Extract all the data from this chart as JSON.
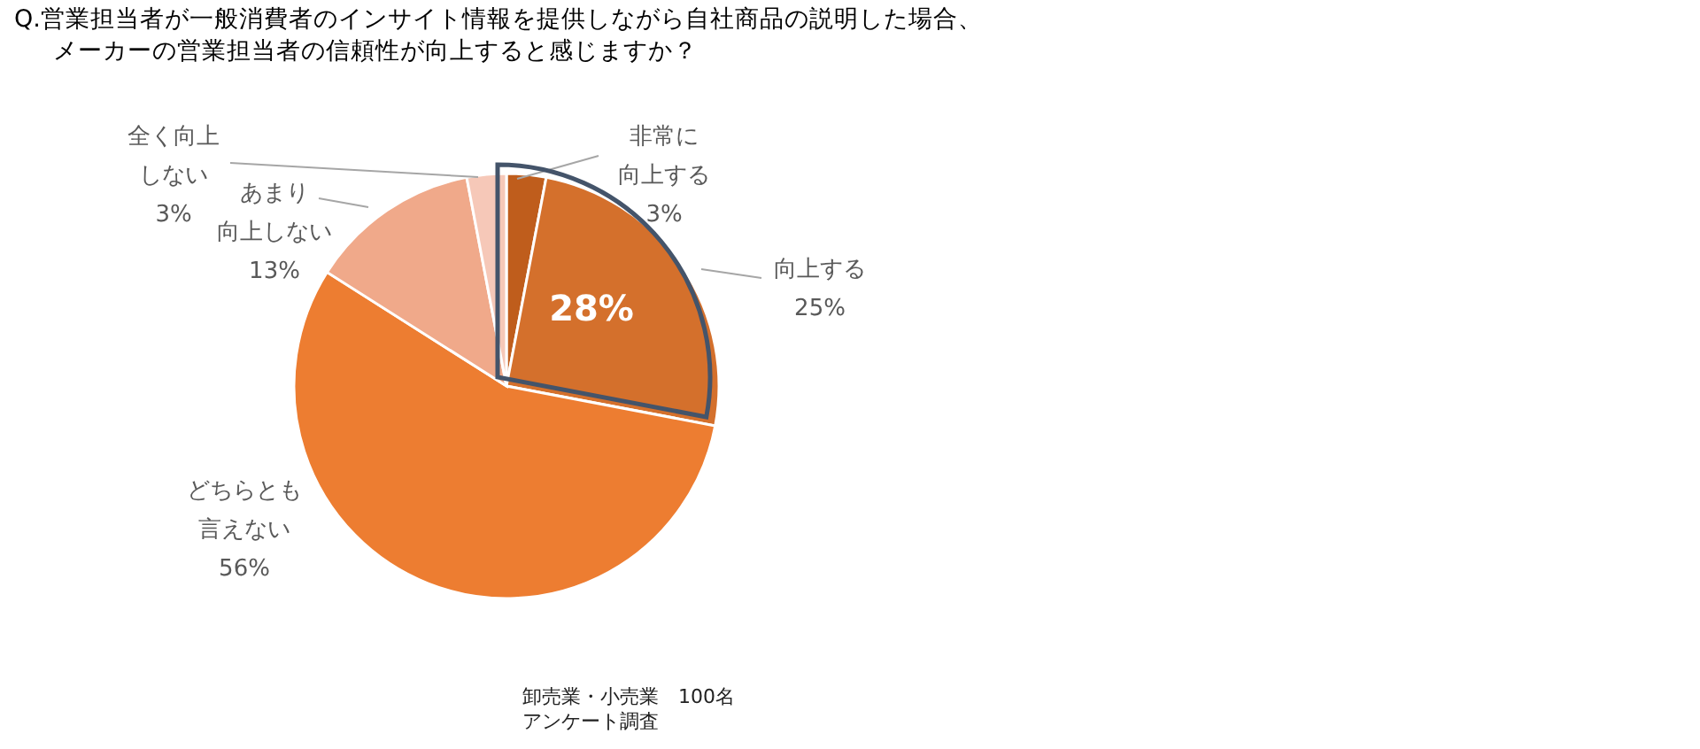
{
  "chart_data": {
    "type": "pie",
    "title": "Q.営業担当者が一般消費者のインサイト情報を提供しながら自社商品の説明した場合、メーカーの営業担当者の信頼性が向上すると感じますか？",
    "categories": [
      "非常に向上する",
      "向上する",
      "どちらとも言えない",
      "あまり向上しない",
      "全く向上しない"
    ],
    "values": [
      3,
      25,
      56,
      13,
      3
    ],
    "value_labels": [
      "3%",
      "25%",
      "56%",
      "13%",
      "3%"
    ],
    "colors": [
      "#bf5d1c",
      "#d4702c",
      "#ed7d31",
      "#f0a98a",
      "#f6c8b8"
    ],
    "annotations": [
      "28%",
      "卸売業・小売業　100名",
      "アンケート調査"
    ]
  }
}
